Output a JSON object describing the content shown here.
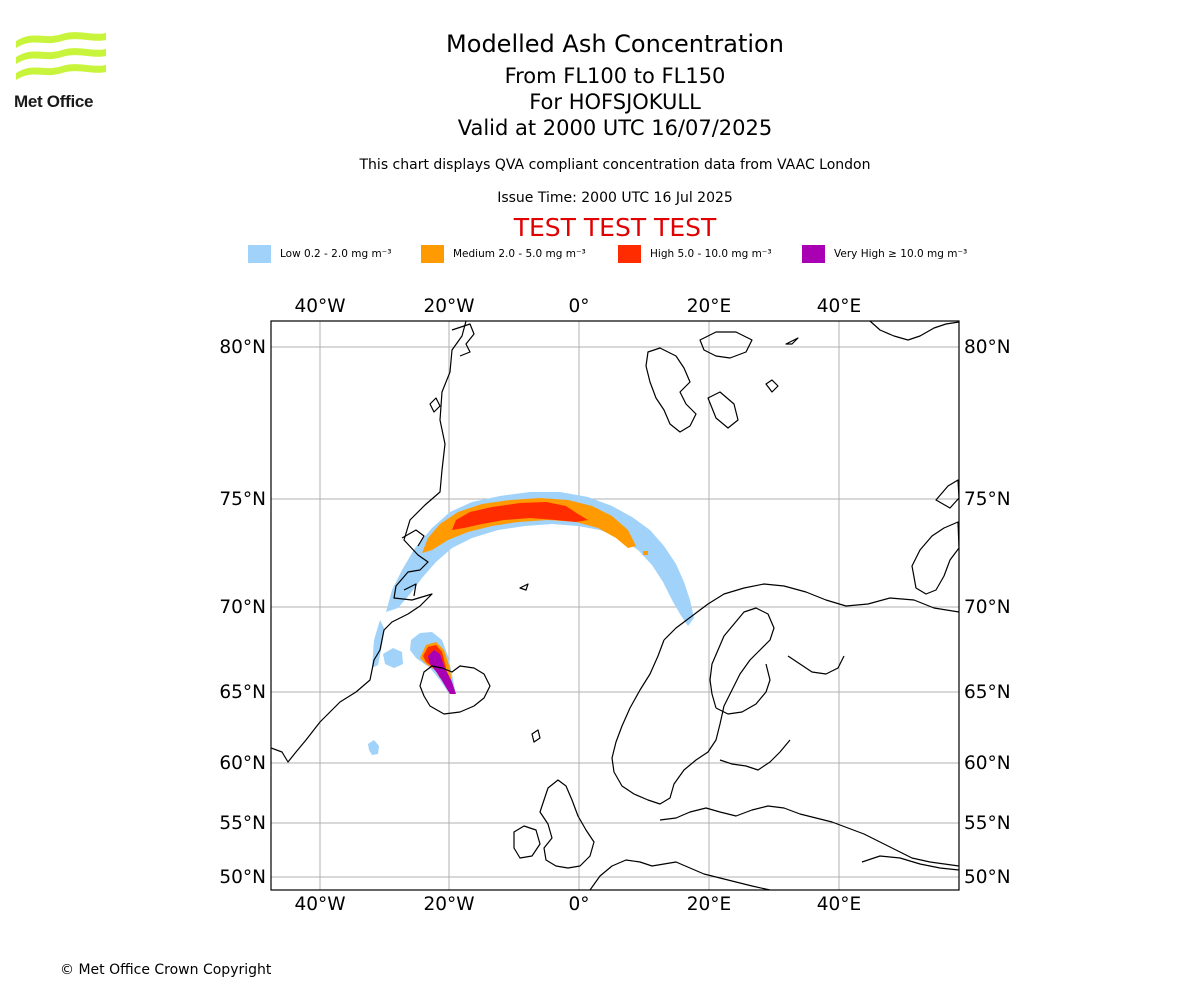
{
  "header": {
    "logo_text": "Met Office",
    "title": "Modelled Ash Concentration",
    "subtitle_levels": "From FL100 to FL150",
    "subtitle_volcano": "For HOFSJOKULL",
    "subtitle_valid": "Valid at 2000 UTC 16/07/2025",
    "description": "This chart displays QVA compliant concentration data from VAAC London",
    "issue_time": "Issue Time: 2000 UTC 16 Jul 2025",
    "test_banner": "TEST TEST TEST"
  },
  "legend": [
    {
      "label": "Low 0.2 - 2.0 mg m⁻³",
      "color": "#a0d2fa"
    },
    {
      "label": "Medium 2.0 - 5.0 mg m⁻³",
      "color": "#ff9a00"
    },
    {
      "label": "High 5.0 - 10.0 mg m⁻³",
      "color": "#ff2c00"
    },
    {
      "label": "Very High ≥ 10.0 mg m⁻³",
      "color": "#aa00b4"
    }
  ],
  "map": {
    "lon_labels": [
      "40°W",
      "20°W",
      "0°",
      "20°E",
      "40°E"
    ],
    "lat_labels": [
      "80°N",
      "75°N",
      "70°N",
      "65°N",
      "60°N",
      "55°N",
      "50°N"
    ]
  },
  "footer": {
    "copyright": "© Met Office Crown Copyright"
  }
}
